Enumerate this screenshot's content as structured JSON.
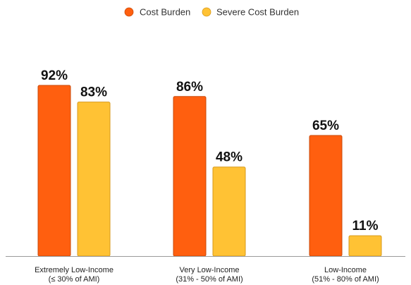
{
  "chart_data": {
    "type": "bar",
    "categories": [
      [
        "Extremely Low-Income",
        "(≤ 30% of AMI)"
      ],
      [
        "Very Low-Income",
        "(31% - 50% of AMI)"
      ],
      [
        "Low-Income",
        "(51% - 80% of AMI)"
      ]
    ],
    "series": [
      {
        "name": "Cost Burden",
        "color": "#FF5F0F",
        "stroke": "#C94A0A",
        "values": [
          92,
          86,
          65
        ],
        "labels": [
          "92%",
          "86%",
          "65%"
        ]
      },
      {
        "name": "Severe Cost Burden",
        "color": "#FFC234",
        "stroke": "#D79A1C",
        "values": [
          83,
          48,
          11
        ],
        "labels": [
          "83%",
          "48%",
          "11%"
        ]
      }
    ],
    "ylim": [
      0,
      100
    ],
    "grid": false,
    "legend_position": "top-center",
    "title": "",
    "xlabel": "",
    "ylabel": ""
  }
}
